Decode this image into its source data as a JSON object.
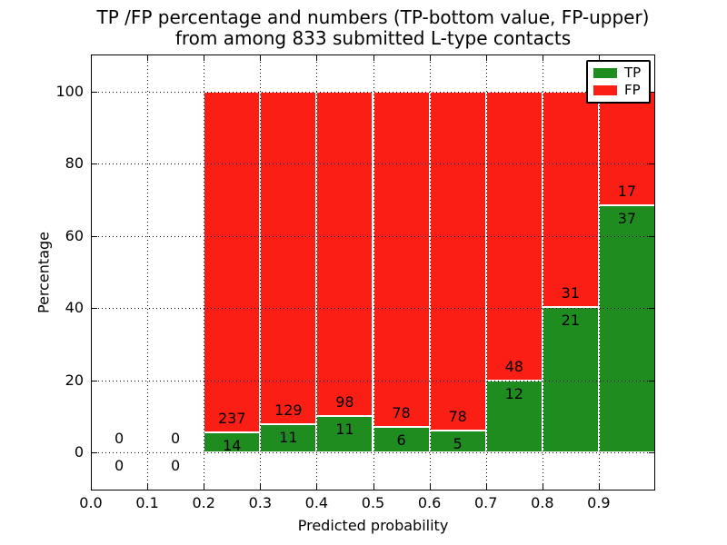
{
  "title": {
    "line1": "TP /FP percentage and numbers (TP-bottom value, FP-upper)",
    "line2": "from among 833 submitted L-type contacts"
  },
  "chart_data": {
    "type": "bar",
    "stacked": true,
    "title": "TP /FP percentage and numbers (TP-bottom value, FP-upper) from among 833 submitted L-type contacts",
    "xlabel": "Predicted probability",
    "ylabel": "Percentage",
    "total_submitted_contacts": 833,
    "xlim": [
      0.0,
      1.0
    ],
    "ylim": [
      -10.58,
      110.33
    ],
    "grid": true,
    "x_ticks": [
      0.0,
      0.1,
      0.2,
      0.3,
      0.4,
      0.5,
      0.6,
      0.7,
      0.8,
      0.9
    ],
    "x_tick_labels": [
      "0.0",
      "0.1",
      "0.2",
      "0.3",
      "0.4",
      "0.5",
      "0.6",
      "0.7",
      "0.8",
      "0.9"
    ],
    "y_ticks": [
      0,
      20,
      40,
      60,
      80,
      100
    ],
    "y_tick_labels": [
      "0",
      "20",
      "40",
      "60",
      "80",
      "100"
    ],
    "legend": {
      "position": "upper right",
      "entries": [
        {
          "label": "TP",
          "color": "#1e8c1e"
        },
        {
          "label": "FP",
          "color": "#fa1e14"
        }
      ]
    },
    "series": [
      {
        "name": "TP",
        "counts": [
          0,
          0,
          14,
          11,
          11,
          6,
          5,
          12,
          21,
          37
        ],
        "pct": [
          0,
          0,
          5.58,
          7.86,
          10.09,
          7.14,
          6.02,
          20.0,
          40.38,
          68.52
        ]
      },
      {
        "name": "FP",
        "counts": [
          0,
          0,
          237,
          129,
          98,
          78,
          78,
          48,
          31,
          17
        ],
        "pct": [
          0,
          0,
          94.42,
          92.14,
          89.91,
          92.86,
          93.98,
          80.0,
          59.62,
          31.48
        ]
      }
    ],
    "bins": [
      {
        "range": [
          0.0,
          0.1
        ],
        "tp": 0,
        "fp": 0,
        "tp_pct": 0,
        "fp_pct": 0
      },
      {
        "range": [
          0.1,
          0.2
        ],
        "tp": 0,
        "fp": 0,
        "tp_pct": 0,
        "fp_pct": 0
      },
      {
        "range": [
          0.2,
          0.3
        ],
        "tp": 14,
        "fp": 237,
        "tp_pct": 5.58,
        "fp_pct": 94.42
      },
      {
        "range": [
          0.3,
          0.4
        ],
        "tp": 11,
        "fp": 129,
        "tp_pct": 7.86,
        "fp_pct": 92.14
      },
      {
        "range": [
          0.4,
          0.5
        ],
        "tp": 11,
        "fp": 98,
        "tp_pct": 10.09,
        "fp_pct": 89.91
      },
      {
        "range": [
          0.5,
          0.6
        ],
        "tp": 6,
        "fp": 78,
        "tp_pct": 7.14,
        "fp_pct": 92.86
      },
      {
        "range": [
          0.6,
          0.7
        ],
        "tp": 5,
        "fp": 78,
        "tp_pct": 6.02,
        "fp_pct": 93.98
      },
      {
        "range": [
          0.7,
          0.8
        ],
        "tp": 12,
        "fp": 48,
        "tp_pct": 20.0,
        "fp_pct": 80.0
      },
      {
        "range": [
          0.8,
          0.9
        ],
        "tp": 21,
        "fp": 31,
        "tp_pct": 40.38,
        "fp_pct": 59.62
      },
      {
        "range": [
          0.9,
          1.0
        ],
        "tp": 37,
        "fp": 17,
        "tp_pct": 68.52,
        "fp_pct": 31.48
      }
    ]
  }
}
